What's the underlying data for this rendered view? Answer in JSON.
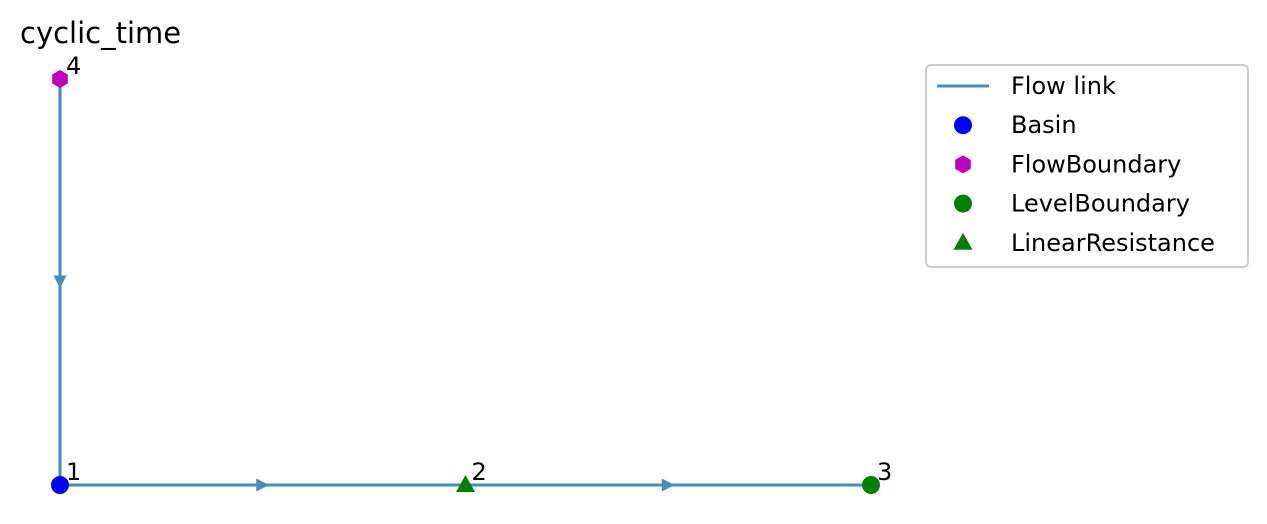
{
  "title": "cyclic_time",
  "colors": {
    "flow_link": "#3f8fc0",
    "basin": "#0000ff",
    "flow_boundary": "#bf00bf",
    "level_boundary": "#008000",
    "linear_resistance": "#008000"
  },
  "nodes": [
    {
      "id": "1",
      "type": "Basin",
      "marker": "circle",
      "color": "#0000ff",
      "x": 0,
      "y": 0
    },
    {
      "id": "2",
      "type": "LinearResistance",
      "marker": "triangle",
      "color": "#008000",
      "x": 1,
      "y": 0
    },
    {
      "id": "3",
      "type": "LevelBoundary",
      "marker": "circle",
      "color": "#008000",
      "x": 2,
      "y": 0
    },
    {
      "id": "4",
      "type": "FlowBoundary",
      "marker": "hexagon",
      "color": "#bf00bf",
      "x": 0,
      "y": 1
    }
  ],
  "links": [
    {
      "from": "4",
      "to": "1"
    },
    {
      "from": "1",
      "to": "2"
    },
    {
      "from": "2",
      "to": "3"
    }
  ],
  "legend": {
    "items": [
      {
        "label": "Flow link",
        "marker": "line",
        "color": "#3f8fc0"
      },
      {
        "label": "Basin",
        "marker": "circle",
        "color": "#0000ff"
      },
      {
        "label": "FlowBoundary",
        "marker": "hexagon",
        "color": "#bf00bf"
      },
      {
        "label": "LevelBoundary",
        "marker": "circle",
        "color": "#008000"
      },
      {
        "label": "LinearResistance",
        "marker": "triangle",
        "color": "#008000"
      }
    ]
  }
}
